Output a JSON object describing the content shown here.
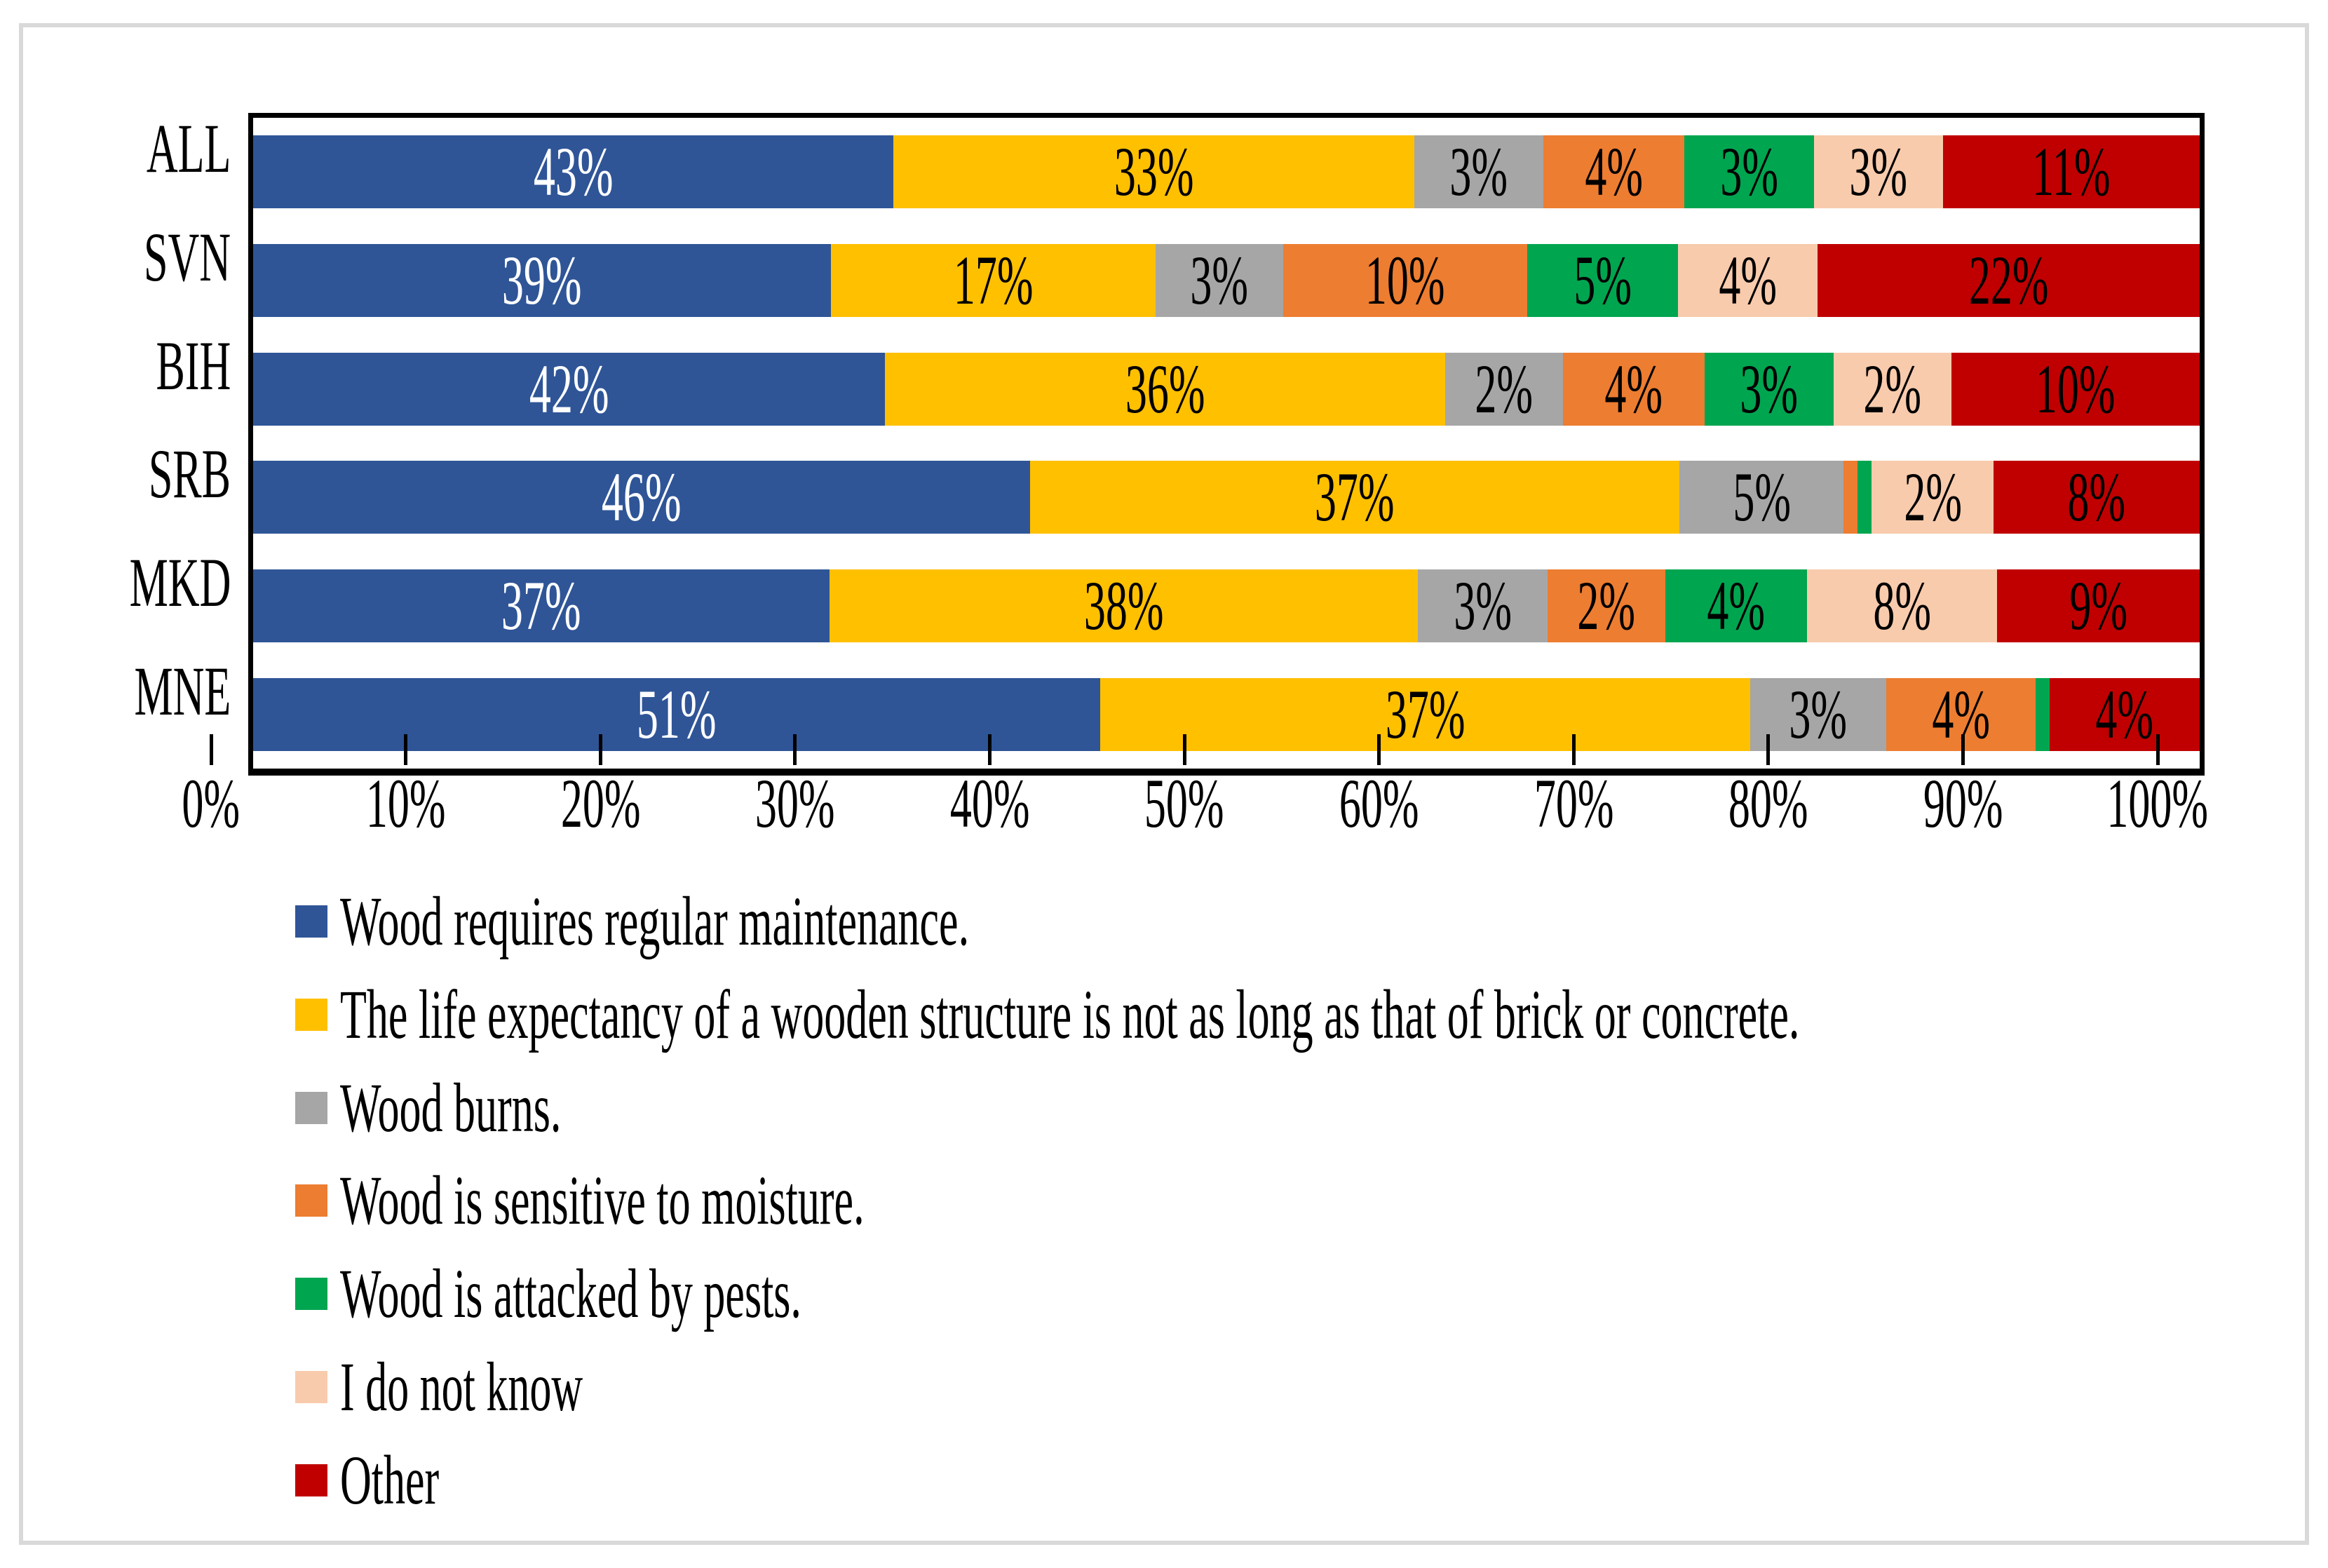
{
  "chart_data": {
    "type": "bar",
    "subtype": "horizontal-stacked-100",
    "categories": [
      "ALL",
      "SVN",
      "BIH",
      "SRB",
      "MKD",
      "MNE"
    ],
    "series": [
      {
        "name": "Wood requires regular maintenance.",
        "color": "#2F5597",
        "label_color": "#FFFFFF",
        "values": [
          43,
          39,
          42,
          46,
          37,
          51
        ],
        "labels": [
          "43%",
          "39%",
          "42%",
          "46%",
          "37%",
          "51%"
        ]
      },
      {
        "name": "The life expectancy of a wooden structure is not as long as that of brick or concrete.",
        "color": "#FFC000",
        "label_color": "#000000",
        "values": [
          33,
          17,
          36,
          37,
          38,
          37
        ],
        "labels": [
          "33%",
          "17%",
          "36%",
          "37%",
          "38%",
          "37%"
        ]
      },
      {
        "name": "Wood burns.",
        "color": "#A6A6A6",
        "label_color": "#000000",
        "values": [
          3,
          3,
          2,
          5,
          3,
          3
        ],
        "labels": [
          "3%",
          "3%",
          "2%",
          "5%",
          "3%",
          "3%"
        ]
      },
      {
        "name": "Wood is sensitive to moisture.",
        "color": "#ED7D31",
        "label_color": "#000000",
        "values": [
          4,
          10,
          4,
          1,
          2,
          4
        ],
        "labels": [
          "4%",
          "10%",
          "4%",
          "",
          "2%",
          "4%"
        ]
      },
      {
        "name": "Wood is attacked by pests.",
        "color": "#00A550",
        "label_color": "#000000",
        "values": [
          3,
          5,
          3,
          1,
          4,
          1
        ],
        "labels": [
          "3%",
          "5%",
          "3%",
          "",
          "4%",
          ""
        ]
      },
      {
        "name": "I do not know",
        "color": "#F8CBAD",
        "label_color": "#000000",
        "values": [
          3,
          4,
          2,
          2,
          8,
          0
        ],
        "labels": [
          "3%",
          "4%",
          "2%",
          "2%",
          "8%",
          ""
        ]
      },
      {
        "name": "Other",
        "color": "#C00000",
        "label_color": "#000000",
        "values": [
          11,
          22,
          10,
          8,
          9,
          4
        ],
        "labels": [
          "11%",
          "22%",
          "10%",
          "8%",
          "9%",
          "4%"
        ]
      }
    ],
    "x_axis": {
      "tick_labels": [
        "0%",
        "10%",
        "20%",
        "30%",
        "40%",
        "50%",
        "60%",
        "70%",
        "80%",
        "90%",
        "100%"
      ],
      "range": [
        0,
        100
      ],
      "grid": false
    },
    "legend_position": "bottom-left",
    "plot_border_color": "#000000",
    "outer_border_color": "#D9D9D9"
  }
}
